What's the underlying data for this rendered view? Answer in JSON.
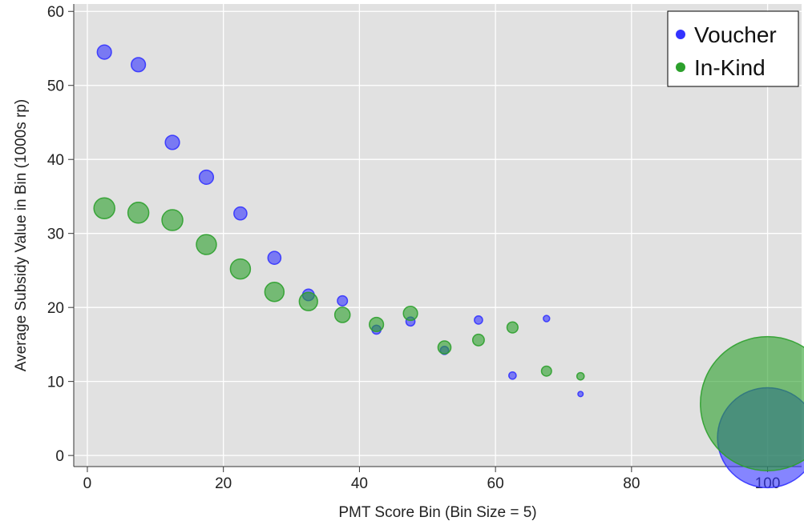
{
  "chart_data": {
    "type": "scatter",
    "title": "",
    "xlabel": "PMT Score Bin (Bin Size = 5)",
    "ylabel": "Average Subsidy Value in Bin (1000s rp)",
    "xlim": [
      -2,
      105
    ],
    "ylim": [
      -1.5,
      61
    ],
    "x_ticks": [
      0,
      20,
      40,
      60,
      80,
      100
    ],
    "y_ticks": [
      0,
      10,
      20,
      30,
      40,
      50,
      60
    ],
    "grid": true,
    "legend_position": "top-right",
    "series": [
      {
        "name": "Voucher",
        "color": "#3333ff",
        "points": [
          {
            "x": 2.5,
            "y": 54.5,
            "size": 3
          },
          {
            "x": 7.5,
            "y": 52.8,
            "size": 3
          },
          {
            "x": 12.5,
            "y": 42.3,
            "size": 3
          },
          {
            "x": 17.5,
            "y": 37.6,
            "size": 3
          },
          {
            "x": 22.5,
            "y": 32.7,
            "size": 2.5
          },
          {
            "x": 27.5,
            "y": 26.7,
            "size": 2.5
          },
          {
            "x": 32.5,
            "y": 21.7,
            "size": 2
          },
          {
            "x": 37.5,
            "y": 20.9,
            "size": 1.5
          },
          {
            "x": 42.5,
            "y": 17.0,
            "size": 1.2
          },
          {
            "x": 47.5,
            "y": 18.1,
            "size": 1.2
          },
          {
            "x": 52.5,
            "y": 14.2,
            "size": 1
          },
          {
            "x": 57.5,
            "y": 18.3,
            "size": 1
          },
          {
            "x": 62.5,
            "y": 10.8,
            "size": 0.8
          },
          {
            "x": 67.5,
            "y": 18.5,
            "size": 0.6
          },
          {
            "x": 72.5,
            "y": 8.3,
            "size": 0.4
          },
          {
            "x": 100,
            "y": 2.4,
            "size": 150
          }
        ]
      },
      {
        "name": "In-Kind",
        "color": "#2ca02c",
        "points": [
          {
            "x": 2.5,
            "y": 33.4,
            "size": 6.5
          },
          {
            "x": 7.5,
            "y": 32.8,
            "size": 6.5
          },
          {
            "x": 12.5,
            "y": 31.8,
            "size": 6.5
          },
          {
            "x": 17.5,
            "y": 28.5,
            "size": 6
          },
          {
            "x": 22.5,
            "y": 25.2,
            "size": 6
          },
          {
            "x": 27.5,
            "y": 22.1,
            "size": 5.5
          },
          {
            "x": 32.5,
            "y": 20.8,
            "size": 5
          },
          {
            "x": 37.5,
            "y": 19.0,
            "size": 3.5
          },
          {
            "x": 42.5,
            "y": 17.7,
            "size": 3
          },
          {
            "x": 47.5,
            "y": 19.2,
            "size": 3
          },
          {
            "x": 52.5,
            "y": 14.6,
            "size": 2.5
          },
          {
            "x": 57.5,
            "y": 15.6,
            "size": 2
          },
          {
            "x": 62.5,
            "y": 17.3,
            "size": 1.8
          },
          {
            "x": 67.5,
            "y": 11.4,
            "size": 1.5
          },
          {
            "x": 72.5,
            "y": 10.7,
            "size": 0.8
          },
          {
            "x": 100,
            "y": 7.0,
            "size": 270
          }
        ]
      }
    ]
  }
}
